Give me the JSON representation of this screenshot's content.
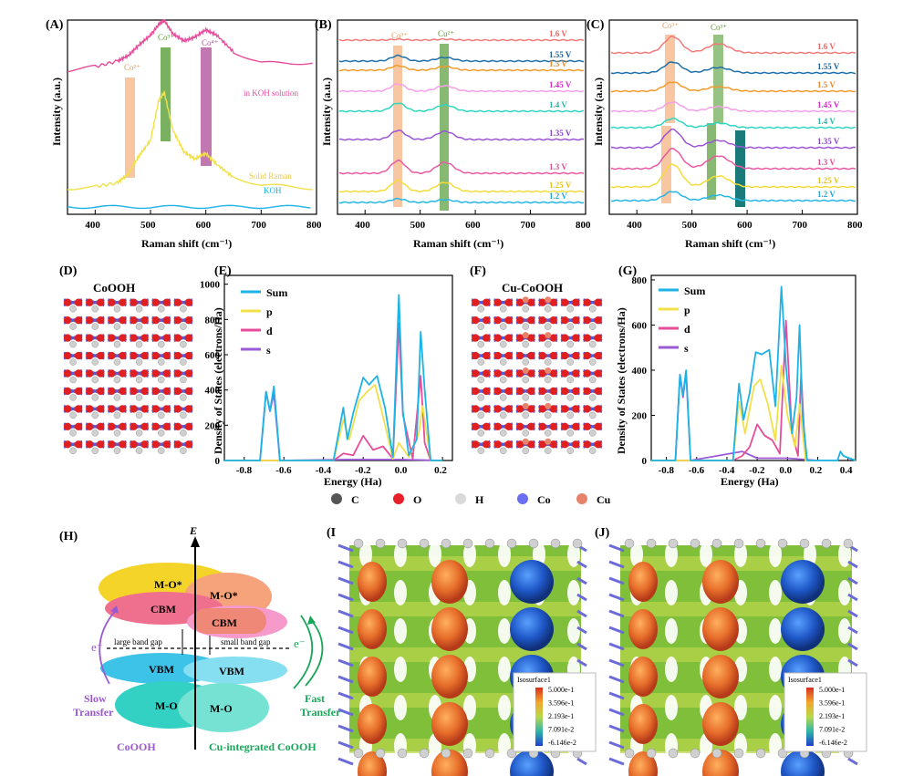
{
  "panels": {
    "A": "(A)",
    "B": "(B)",
    "C": "(C)",
    "D": "(D)",
    "E": "(E)",
    "F": "(F)",
    "G": "(G)",
    "H": "(H)",
    "I": "(I",
    "J": "(J)"
  },
  "raman_axis": {
    "xlabel": "Raman shift (cm⁻¹)",
    "ylabel": "Intensity (a.u.)",
    "xticks": [
      "400",
      "500",
      "600",
      "700",
      "800"
    ],
    "xlim": [
      350,
      800
    ]
  },
  "panel_a": {
    "peaks": [
      "Co²⁺",
      "Co³⁺",
      "Co⁴⁺"
    ],
    "curves": [
      "in KOH solution",
      "Solid Raman",
      "KOH"
    ]
  },
  "panel_b": {
    "peaks": [
      "Co³⁺",
      "Cu²⁺"
    ],
    "potentials": [
      "1.6 V",
      "1.55 V",
      "1.5 V",
      "1.45 V",
      "1.4 V",
      "1.35 V",
      "1.3 V",
      "1.25 V",
      "1.2 V"
    ]
  },
  "panel_c": {
    "peaks": [
      "Co³⁺",
      "Co³⁺"
    ],
    "potentials": [
      "1.6 V",
      "1.55 V",
      "1.5 V",
      "1.45 V",
      "1.4 V",
      "1.35 V",
      "1.3 V",
      "1.25 V",
      "1.2 V"
    ]
  },
  "structures": {
    "d_title": "CoOOH",
    "f_title": "Cu-CoOOH"
  },
  "dos": {
    "xlabel": "Energy (Ha)",
    "ylabel": "Density of States (electrons/Ha)",
    "legend": [
      "Sum",
      "p",
      "d",
      "s"
    ],
    "e_xticks": [
      "-0.8",
      "-0.6",
      "-0.4",
      "-0.2",
      "0.0",
      "0.2"
    ],
    "e_yticks": [
      "0",
      "200",
      "400",
      "600",
      "800",
      "1000"
    ],
    "g_xticks": [
      "-0.8",
      "-0.6",
      "-0.4",
      "-0.2",
      "0.0",
      "0.2",
      "0.4"
    ],
    "g_yticks": [
      "0",
      "200",
      "400",
      "600",
      "800"
    ]
  },
  "atoms_legend": [
    "C",
    "O",
    "H",
    "Co",
    "Cu"
  ],
  "band_diagram": {
    "axis": "E",
    "left_labels": [
      "M-O*",
      "CBM",
      "VBM",
      "M-O"
    ],
    "right_labels": [
      "M-O*",
      "CBM",
      "VBM",
      "M-O"
    ],
    "large_gap": "large band gap",
    "small_gap": "small band gap",
    "electron": "e⁻",
    "slow": "Slow Transfer",
    "fast": "Fast Transfer",
    "left_caption": "CoOOH",
    "right_caption": "Cu-integrated CoOOH"
  },
  "isosurface": {
    "title": "Isosurface1",
    "values": [
      "5.000e-1",
      "3.596e-1",
      "2.193e-1",
      "7.091e-2",
      "-6.146e-2"
    ]
  },
  "chart_data": [
    {
      "type": "line",
      "panel": "A",
      "xlabel": "Raman shift (cm⁻¹)",
      "ylabel": "Intensity (a.u.)",
      "xlim": [
        350,
        800
      ],
      "series": [
        {
          "name": "in KOH solution",
          "color": "#e64c9a",
          "x": [
            350,
            400,
            440,
            460,
            480,
            500,
            515,
            525,
            540,
            560,
            580,
            600,
            620,
            650,
            700,
            800
          ],
          "y": [
            0.78,
            0.8,
            0.83,
            0.86,
            0.92,
            0.97,
            1.03,
            1.05,
            0.98,
            0.94,
            0.96,
            1.0,
            0.97,
            0.88,
            0.82,
            0.82
          ]
        },
        {
          "name": "Solid Raman",
          "color": "#f2e04a",
          "x": [
            350,
            400,
            440,
            460,
            480,
            500,
            515,
            525,
            540,
            560,
            580,
            600,
            620,
            650,
            700,
            800
          ],
          "y": [
            0.14,
            0.15,
            0.17,
            0.22,
            0.32,
            0.4,
            0.62,
            0.66,
            0.46,
            0.34,
            0.3,
            0.33,
            0.27,
            0.2,
            0.16,
            0.14
          ]
        },
        {
          "name": "KOH",
          "color": "#1db3e6",
          "x": [
            350,
            500,
            650,
            800
          ],
          "y": [
            0.04,
            0.04,
            0.04,
            0.04
          ]
        }
      ]
    },
    {
      "type": "line",
      "panel": "B",
      "xlabel": "Raman shift (cm⁻¹)",
      "ylabel": "Intensity (a.u.)",
      "xlim": [
        350,
        800
      ],
      "series_labels": [
        "1.6 V",
        "1.55 V",
        "1.5 V",
        "1.45 V",
        "1.4 V",
        "1.35 V",
        "1.3 V",
        "1.25 V",
        "1.2 V"
      ],
      "peak_positions": [
        460,
        545
      ]
    },
    {
      "type": "line",
      "panel": "C",
      "xlabel": "Raman shift (cm⁻¹)",
      "ylabel": "Intensity (a.u.)",
      "xlim": [
        350,
        800
      ],
      "series_labels": [
        "1.6 V",
        "1.55 V",
        "1.5 V",
        "1.45 V",
        "1.4 V",
        "1.35 V",
        "1.3 V",
        "1.25 V",
        "1.2 V"
      ],
      "peak_positions": [
        465,
        545,
        590
      ]
    },
    {
      "type": "line",
      "panel": "E",
      "xlabel": "Energy (Ha)",
      "ylabel": "Density of States (electrons/Ha)",
      "xlim": [
        -0.9,
        0.25
      ],
      "ylim": [
        0,
        1050
      ],
      "series": [
        {
          "name": "Sum",
          "color": "#1db3e6",
          "x": [
            -0.9,
            -0.72,
            -0.69,
            -0.67,
            -0.65,
            -0.62,
            -0.35,
            -0.3,
            -0.28,
            -0.25,
            -0.2,
            -0.17,
            -0.13,
            -0.09,
            -0.05,
            -0.02,
            0.0,
            0.03,
            0.07,
            0.09,
            0.11,
            0.14,
            0.2
          ],
          "y": [
            0,
            0,
            390,
            280,
            420,
            0,
            0,
            300,
            120,
            270,
            470,
            430,
            480,
            300,
            20,
            940,
            280,
            30,
            120,
            730,
            400,
            0,
            0
          ]
        },
        {
          "name": "p",
          "color": "#f2e04a",
          "x": [
            -0.9,
            -0.35,
            -0.3,
            -0.27,
            -0.22,
            -0.18,
            -0.14,
            -0.1,
            -0.05,
            -0.02,
            0.03,
            0.08,
            0.1,
            0.14,
            0.2
          ],
          "y": [
            0,
            0,
            230,
            120,
            340,
            390,
            430,
            250,
            10,
            100,
            20,
            150,
            310,
            0,
            0
          ]
        },
        {
          "name": "d",
          "color": "#e64c9a",
          "x": [
            -0.9,
            -0.35,
            -0.3,
            -0.25,
            -0.2,
            -0.15,
            -0.1,
            -0.05,
            -0.02,
            0.0,
            0.05,
            0.09,
            0.11,
            0.14,
            0.2
          ],
          "y": [
            0,
            0,
            40,
            30,
            140,
            60,
            80,
            10,
            780,
            260,
            10,
            480,
            100,
            0,
            0
          ]
        },
        {
          "name": "s",
          "color": "#9b5ad6",
          "x": [
            -0.9,
            -0.72,
            -0.69,
            -0.67,
            -0.65,
            -0.62,
            -0.3,
            -0.2,
            0.0,
            0.2
          ],
          "y": [
            0,
            0,
            390,
            280,
            380,
            0,
            5,
            5,
            5,
            0
          ]
        }
      ]
    },
    {
      "type": "line",
      "panel": "G",
      "xlabel": "Energy (Ha)",
      "ylabel": "Density of States (electrons/Ha)",
      "xlim": [
        -0.9,
        0.45
      ],
      "ylim": [
        0,
        820
      ],
      "series": [
        {
          "name": "Sum",
          "color": "#1db3e6",
          "x": [
            -0.9,
            -0.74,
            -0.71,
            -0.69,
            -0.67,
            -0.64,
            -0.36,
            -0.32,
            -0.29,
            -0.25,
            -0.21,
            -0.17,
            -0.12,
            -0.08,
            -0.04,
            -0.01,
            0.03,
            0.06,
            0.08,
            0.1,
            0.13,
            0.33,
            0.35,
            0.37,
            0.45
          ],
          "y": [
            0,
            0,
            380,
            290,
            400,
            0,
            0,
            340,
            180,
            300,
            480,
            470,
            490,
            240,
            770,
            420,
            120,
            280,
            600,
            200,
            0,
            0,
            40,
            20,
            0
          ]
        },
        {
          "name": "p",
          "color": "#f2e04a",
          "x": [
            -0.9,
            -0.36,
            -0.32,
            -0.28,
            -0.22,
            -0.18,
            -0.13,
            -0.08,
            -0.04,
            0.0,
            0.05,
            0.08,
            0.12,
            0.2
          ],
          "y": [
            0,
            0,
            260,
            120,
            330,
            360,
            250,
            90,
            420,
            200,
            60,
            250,
            0,
            0
          ]
        },
        {
          "name": "d",
          "color": "#e64c9a",
          "x": [
            -0.9,
            -0.36,
            -0.3,
            -0.25,
            -0.2,
            -0.15,
            -0.1,
            -0.05,
            -0.01,
            0.03,
            0.07,
            0.09,
            0.12,
            0.2
          ],
          "y": [
            0,
            0,
            20,
            60,
            160,
            110,
            90,
            30,
            620,
            120,
            20,
            390,
            0,
            0
          ]
        },
        {
          "name": "s",
          "color": "#9b5ad6",
          "x": [
            -0.9,
            -0.74,
            -0.71,
            -0.69,
            -0.67,
            -0.64,
            -0.3,
            -0.2,
            0.0,
            0.2
          ],
          "y": [
            0,
            0,
            380,
            280,
            390,
            0,
            40,
            10,
            10,
            0
          ]
        }
      ]
    }
  ]
}
